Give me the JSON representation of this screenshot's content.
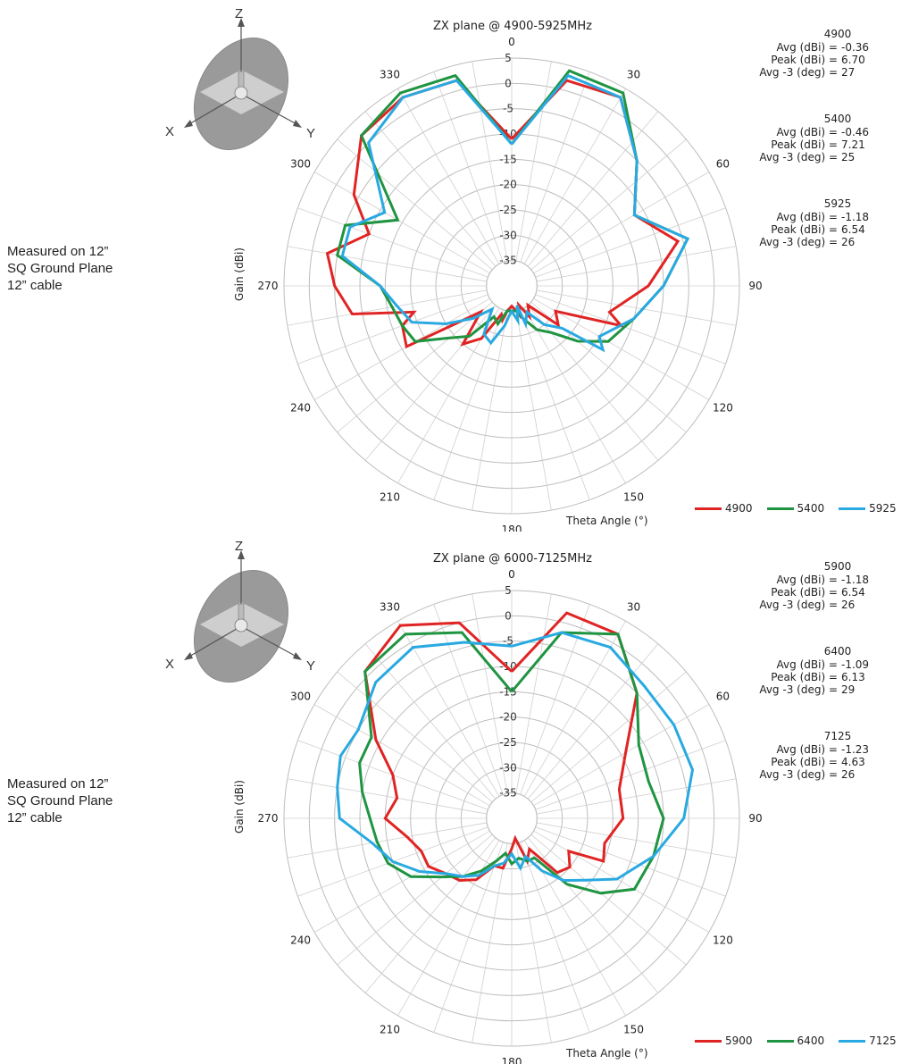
{
  "chart_data": [
    {
      "type": "polar-line",
      "title": "ZX plane @ 4900-5925MHz",
      "xlabel": "Theta Angle (°)",
      "ylabel": "Gain (dBi)",
      "r_ticks": [
        5,
        0,
        -5,
        -10,
        -15,
        -20,
        -25,
        -30,
        -35
      ],
      "angle_ticks": [
        0,
        30,
        60,
        90,
        120,
        150,
        180,
        210,
        240,
        270,
        300,
        330
      ],
      "rlim": [
        -40,
        5
      ],
      "note": [
        "Measured on 12”",
        "SQ Ground Plane",
        "12” cable"
      ],
      "axes_3d": {
        "z": "Z",
        "x": "X",
        "y": "Y"
      },
      "legend_position": "bottom-right",
      "series": [
        {
          "name": "4900",
          "color": "#e02424",
          "angles": [
            0,
            15,
            30,
            45,
            60,
            75,
            90,
            105,
            110,
            120,
            130,
            140,
            150,
            160,
            165,
            170,
            180,
            190,
            195,
            200,
            205,
            210,
            220,
            230,
            240,
            250,
            255,
            260,
            270,
            280,
            290,
            300,
            315,
            330,
            345
          ],
          "values": [
            -11,
            2,
            3,
            -5,
            -12,
            -6,
            -13,
            -20,
            -17,
            -30,
            -28,
            -35,
            -33,
            -36,
            -34,
            -35,
            -36,
            -35,
            -33,
            -34,
            -32,
            -28,
            -25,
            -32,
            -16,
            -17,
            -20,
            -8,
            -5,
            -3,
            -10,
            -4,
            2,
            3,
            2
          ]
        },
        {
          "name": "5400",
          "color": "#1f9441",
          "angles": [
            0,
            15,
            30,
            45,
            60,
            75,
            90,
            105,
            120,
            130,
            140,
            150,
            160,
            170,
            180,
            190,
            200,
            210,
            220,
            230,
            240,
            250,
            260,
            270,
            280,
            290,
            300,
            315,
            330,
            345
          ],
          "values": [
            -12,
            4,
            4,
            -5,
            -12,
            -4,
            -10,
            -15,
            -18,
            -23,
            -28,
            -30,
            -33,
            -35,
            -35,
            -35,
            -32,
            -33,
            -27,
            -24,
            -18,
            -17,
            -16,
            -14,
            -5,
            -5,
            -14,
            2,
            4,
            3
          ]
        },
        {
          "name": "5925",
          "color": "#29a9e1",
          "angles": [
            0,
            15,
            30,
            45,
            60,
            75,
            90,
            105,
            120,
            125,
            130,
            140,
            150,
            160,
            165,
            170,
            180,
            185,
            190,
            200,
            210,
            220,
            230,
            240,
            250,
            260,
            270,
            280,
            290,
            300,
            315,
            330,
            345
          ],
          "values": [
            -12,
            3,
            3,
            -5,
            -12,
            -4,
            -10,
            -15,
            -20,
            -18,
            -27,
            -30,
            -34,
            -32,
            -36,
            -33,
            -35,
            -34,
            -32,
            -28,
            -29,
            -34,
            -30,
            -25,
            -19,
            -17,
            -14,
            -6,
            -6,
            -11,
            0,
            3,
            2
          ]
        }
      ],
      "stats": [
        {
          "freq": "4900",
          "avg_label": "Avg (dBi) =",
          "avg": "-0.36",
          "peak_label": "Peak (dBi) =",
          "peak": "6.70",
          "beam_label": "Avg -3 (deg) =",
          "beam": "27"
        },
        {
          "freq": "5400",
          "avg_label": "Avg (dBi) =",
          "avg": "-0.46",
          "peak_label": "Peak (dBi) =",
          "peak": "7.21",
          "beam_label": "Avg -3 (deg) =",
          "beam": "25"
        },
        {
          "freq": "5925",
          "avg_label": "Avg (dBi) =",
          "avg": "-1.18",
          "peak_label": "Peak (dBi) =",
          "peak": "6.54",
          "beam_label": "Avg -3 (deg) =",
          "beam": "26"
        }
      ]
    },
    {
      "type": "polar-line",
      "title": "ZX plane @ 6000-7125MHz",
      "xlabel": "Theta Angle (°)",
      "ylabel": "Gain (dBi)",
      "r_ticks": [
        5,
        0,
        -5,
        -10,
        -15,
        -20,
        -25,
        -30,
        -35
      ],
      "angle_ticks": [
        0,
        30,
        60,
        90,
        120,
        150,
        180,
        210,
        240,
        270,
        300,
        330
      ],
      "rlim": [
        -40,
        5
      ],
      "note": [
        "Measured on 12”",
        "SQ Ground Plane",
        "12” cable"
      ],
      "axes_3d": {
        "z": "Z",
        "x": "X",
        "y": "Y"
      },
      "legend_position": "bottom-right",
      "series": [
        {
          "name": "5900",
          "color": "#e02424",
          "angles": [
            0,
            15,
            30,
            45,
            60,
            75,
            90,
            105,
            115,
            120,
            130,
            140,
            150,
            160,
            170,
            180,
            190,
            200,
            210,
            220,
            230,
            240,
            250,
            260,
            270,
            280,
            290,
            300,
            315,
            330,
            345
          ],
          "values": [
            -11,
            2,
            2,
            -5,
            -14,
            -18,
            -18,
            -21,
            -20,
            -27,
            -25,
            -26,
            -33,
            -31,
            -36,
            -34,
            -30,
            -30,
            -26,
            -24,
            -23,
            -21,
            -21,
            -19,
            -15,
            -17,
            -15,
            -9,
            1,
            4,
            0
          ]
        },
        {
          "name": "6400",
          "color": "#1f9441",
          "angles": [
            0,
            15,
            30,
            45,
            60,
            75,
            90,
            105,
            120,
            130,
            140,
            150,
            160,
            170,
            180,
            190,
            200,
            210,
            220,
            230,
            240,
            250,
            260,
            270,
            280,
            290,
            300,
            315,
            330,
            345
          ],
          "values": [
            -15,
            -2,
            2,
            -5,
            -11,
            -12,
            -10,
            -11,
            -12,
            -17,
            -23,
            -31,
            -31,
            -32,
            -31,
            -33,
            -31,
            -28,
            -25,
            -22,
            -17,
            -14,
            -13,
            -12,
            -10,
            -8,
            -8,
            1,
            2,
            -2
          ]
        },
        {
          "name": "7125",
          "color": "#29a9e1",
          "angles": [
            0,
            15,
            30,
            45,
            60,
            75,
            90,
            105,
            120,
            130,
            140,
            150,
            160,
            170,
            180,
            190,
            200,
            210,
            220,
            230,
            240,
            250,
            260,
            270,
            280,
            290,
            300,
            315,
            330,
            345
          ],
          "values": [
            -6,
            -2,
            -1,
            -3,
            -3,
            -3,
            -6,
            -11,
            -16,
            -21,
            -24,
            -28,
            -32,
            -30,
            -33,
            -31,
            -30,
            -27,
            -25,
            -23,
            -19,
            -15,
            -12,
            -6,
            -5,
            -4,
            -5,
            -2,
            -1,
            -4
          ]
        }
      ],
      "stats": [
        {
          "freq": "5900",
          "avg_label": "Avg (dBi) =",
          "avg": "-1.18",
          "peak_label": "Peak (dBi) =",
          "peak": "6.54",
          "beam_label": "Avg -3 (deg) =",
          "beam": "26"
        },
        {
          "freq": "6400",
          "avg_label": "Avg (dBi) =",
          "avg": "-1.09",
          "peak_label": "Peak (dBi) =",
          "peak": "6.13",
          "beam_label": "Avg -3 (deg) =",
          "beam": "29"
        },
        {
          "freq": "7125",
          "avg_label": "Avg (dBi) =",
          "avg": "-1.23",
          "peak_label": "Peak (dBi) =",
          "peak": "4.63",
          "beam_label": "Avg -3 (deg) =",
          "beam": "26"
        }
      ]
    }
  ]
}
